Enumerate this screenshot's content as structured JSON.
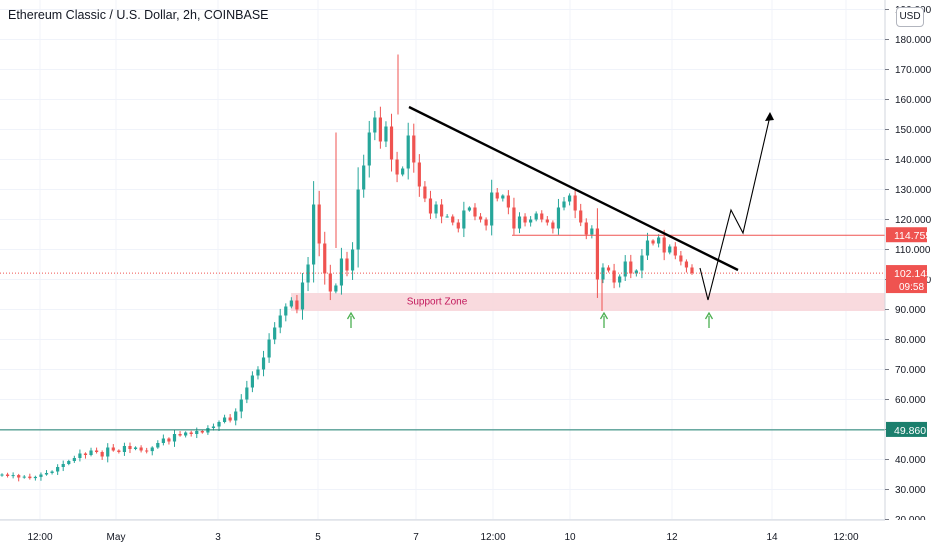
{
  "header": {
    "title": "Ethereum Classic / U.S. Dollar, 2h, COINBASE",
    "currency_button": "USD"
  },
  "colors": {
    "up": "#26a69a",
    "down": "#ef5350",
    "trendline": "#000000",
    "resistance_line": "#ef5350",
    "support_level_line": "#1b7f6d",
    "support_zone_fill": "#f8d4d8",
    "support_zone_text": "#c2185b",
    "arrow_green": "#4caf50",
    "grid": "#f0f3fa"
  },
  "chart_data": {
    "type": "candlestick",
    "title": "Ethereum Classic / U.S. Dollar, 2h, COINBASE",
    "y_axis": {
      "ticks": [
        "190.000",
        "180.000",
        "170.000",
        "160.000",
        "150.000",
        "140.000",
        "130.000",
        "120.000",
        "110.000",
        "100.000",
        "90.000",
        "80.000",
        "70.000",
        "60.000",
        "50.000",
        "40.000",
        "30.000",
        "20.000"
      ],
      "ylim": [
        20,
        190
      ]
    },
    "x_axis": {
      "ticks": [
        "12:00",
        "May",
        "3",
        "5",
        "7",
        "12:00",
        "10",
        "12",
        "14",
        "12:00"
      ]
    },
    "price_labels": [
      {
        "name": "resistance",
        "value": "114.755"
      },
      {
        "name": "last-price",
        "value": "102.143",
        "countdown": "09:58"
      },
      {
        "name": "support-level",
        "value": "49.860"
      }
    ],
    "annotations": {
      "support_zone": {
        "label": "Support Zone",
        "low": 89.5,
        "high": 95.5
      },
      "resistance_level": 114.755,
      "support_level": 49.86
    },
    "price_path": [
      35,
      34.5,
      34.8,
      34,
      34.3,
      33.8,
      34.2,
      35,
      35.5,
      36,
      37.5,
      38.5,
      39.5,
      40.5,
      42,
      41.5,
      43,
      42.5,
      41,
      44,
      43,
      42.5,
      44.5,
      43.5,
      44,
      43,
      42.8,
      44,
      45.5,
      47,
      46,
      48.5,
      48,
      49,
      48.5,
      49.5,
      49,
      50.5,
      51,
      52.5,
      54,
      53,
      56,
      60,
      64,
      68,
      70,
      74,
      80,
      84,
      88,
      91,
      93,
      90,
      99,
      105,
      125,
      112,
      102,
      96,
      98,
      107,
      103,
      110,
      130,
      138,
      149,
      154,
      146,
      151,
      140,
      135,
      137,
      148,
      139,
      131,
      127,
      122,
      125,
      121,
      121,
      119,
      117,
      123,
      124,
      121,
      120,
      118,
      129,
      127,
      128,
      124,
      117,
      121,
      119,
      120,
      122,
      120,
      119,
      117,
      124,
      126,
      128,
      123,
      119,
      115,
      117,
      100,
      104,
      103,
      99,
      101,
      106,
      102,
      103,
      108,
      113,
      112,
      114,
      109,
      111,
      108,
      106,
      104,
      102.1
    ]
  }
}
